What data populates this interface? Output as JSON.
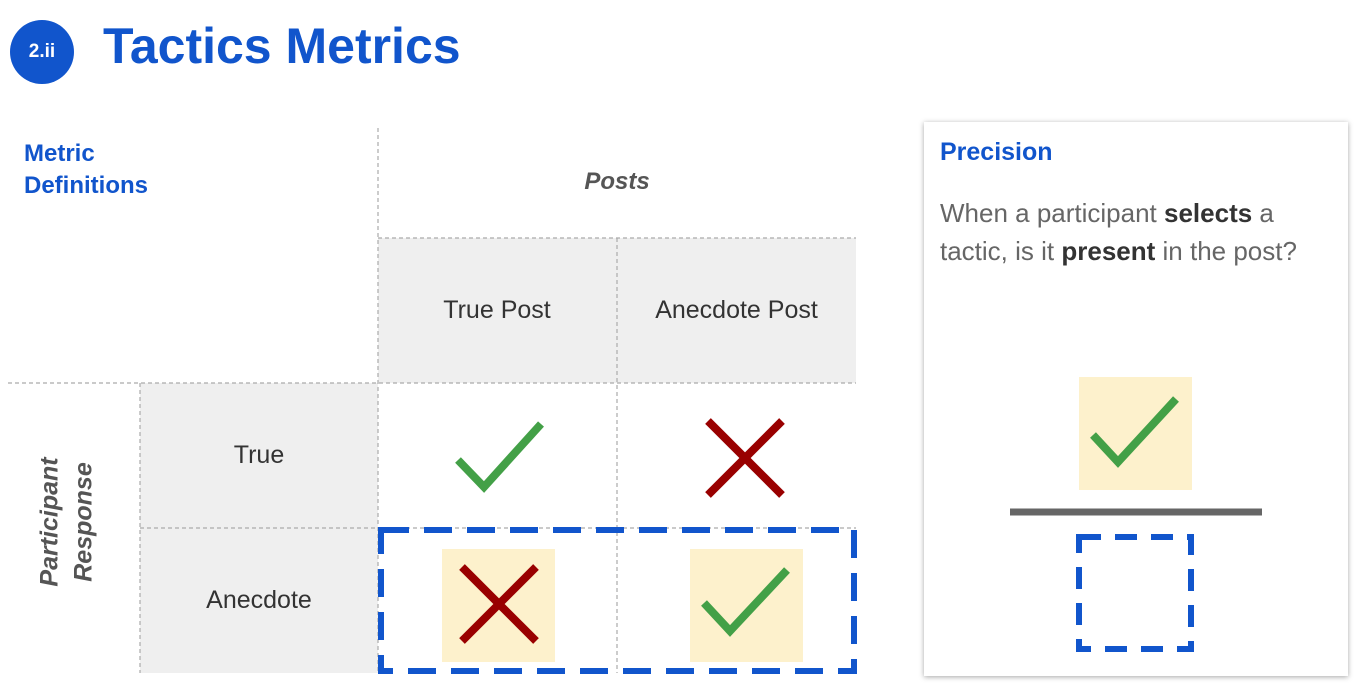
{
  "header": {
    "badge": "2.ii",
    "title": "Tactics Metrics"
  },
  "matrix": {
    "section_label_line1": "Metric",
    "section_label_line2": "Definitions",
    "columns_title": "Posts",
    "column_headers": [
      "True Post",
      "Anecdote Post"
    ],
    "rows_title_line1": "Participant",
    "rows_title_line2": "Response",
    "row_headers": [
      "True",
      "Anecdote"
    ],
    "cells": [
      [
        "check-icon",
        "cross-icon"
      ],
      [
        "cross-icon",
        "check-icon"
      ]
    ],
    "highlighted_row": "Anecdote"
  },
  "precision_card": {
    "title": "Precision",
    "text_before_1": "When a participant ",
    "bold_1": "selects",
    "text_between": " a tactic, is it ",
    "bold_2": "present",
    "text_after": " in the post?",
    "numerator_icon": "check-icon",
    "denominator_icon": "dashed-box-icon"
  },
  "colors": {
    "accent": "#1155cc",
    "check": "#43a047",
    "cross": "#990000",
    "highlight_fill": "#fdf1cc",
    "header_fill": "#efefef"
  }
}
